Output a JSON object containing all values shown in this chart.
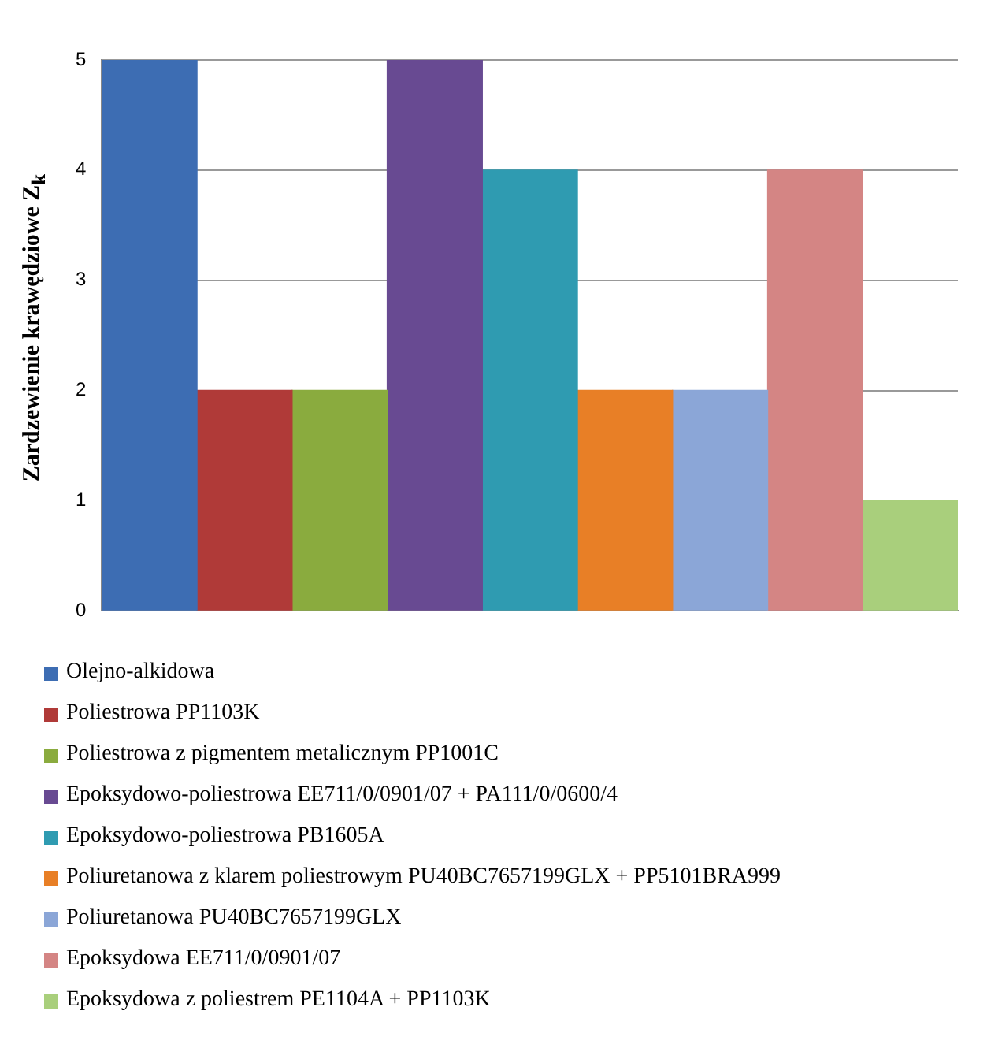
{
  "chart_data": {
    "type": "bar",
    "ylabel": "Zardzewienie krawędziowe Z$_{k}$",
    "categories": [
      null
    ],
    "ylim": [
      0,
      5
    ],
    "yticks": [
      0,
      1,
      2,
      3,
      4,
      5
    ],
    "grid": "y",
    "legend": "bottom",
    "series": [
      {
        "name": "Olejno-alkidowa",
        "color": "#3d6db3",
        "values": [
          5
        ]
      },
      {
        "name": "Poliestrowa PP1103K",
        "color": "#b03a38",
        "values": [
          2
        ]
      },
      {
        "name": "Poliestrowa z pigmentem metalicznym PP1001C",
        "color": "#8aab3e",
        "values": [
          2
        ]
      },
      {
        "name": "Epoksydowo-poliestrowa EE711/0/0901/07 + PA111/0/0600/4",
        "color": "#684a92",
        "values": [
          5
        ]
      },
      {
        "name": "Epoksydowo-poliestrowa PB1605A",
        "color": "#2f9bb1",
        "values": [
          4
        ]
      },
      {
        "name": "Poliuretanowa z klarem poliestrowym PU40BC7657199GLX + PP5101BRA999",
        "color": "#e87f26",
        "values": [
          2
        ]
      },
      {
        "name": "Poliuretanowa PU40BC7657199GLX",
        "color": "#8ba6d7",
        "values": [
          2
        ]
      },
      {
        "name": "Epoksydowa EE711/0/0901/07",
        "color": "#d48584",
        "values": [
          4
        ]
      },
      {
        "name": "Epoksydowa z poliestrem PE1104A + PP1103K",
        "color": "#a9cf7c",
        "values": [
          1
        ]
      }
    ]
  }
}
